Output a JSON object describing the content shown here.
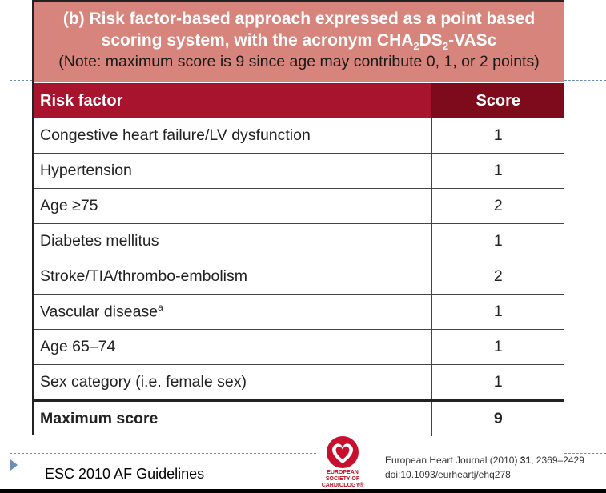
{
  "title": {
    "line1": "(b) Risk factor-based approach expressed as a point based",
    "line2_prefix": "scoring system, with the acronym CHA",
    "line2_sub1": "2",
    "line2_mid": "DS",
    "line2_sub2": "2",
    "line2_suffix": "-VASc",
    "note": "(Note: maximum score is 9 since age may contribute 0, 1, or 2 points)"
  },
  "table": {
    "headers": {
      "risk_factor": "Risk factor",
      "score": "Score"
    },
    "rows": [
      {
        "factor": "Congestive heart failure/LV dysfunction",
        "score": "1"
      },
      {
        "factor": "Hypertension",
        "score": "1"
      },
      {
        "factor": "Age ≥75",
        "score": "2"
      },
      {
        "factor": "Diabetes mellitus",
        "score": "1"
      },
      {
        "factor": "Stroke/TIA/thrombo-embolism",
        "score": "2"
      },
      {
        "factor": "Vascular disease",
        "sup": "a",
        "score": "1"
      },
      {
        "factor": "Age 65–74",
        "score": "1"
      },
      {
        "factor": "Sex category (i.e. female sex)",
        "score": "1"
      }
    ],
    "max_row": {
      "factor": "Maximum score",
      "score": "9"
    }
  },
  "footer": {
    "label": "ESC 2010 AF Guidelines"
  },
  "logo": {
    "text_line1": "EUROPEAN",
    "text_line2": "SOCIETY OF",
    "text_line3": "CARDIOLOGY®"
  },
  "citation": {
    "journal": "European Heart Journal (2010) ",
    "volume": "31",
    "pages": ", 2369–2429",
    "doi": "doi:10.1093/eurheartj/ehq278"
  },
  "colors": {
    "title_bg": "#d6847c",
    "header_bg": "#a8142e",
    "score_header_bg": "#7e0b1c",
    "accent_line": "#6b8fb8"
  }
}
